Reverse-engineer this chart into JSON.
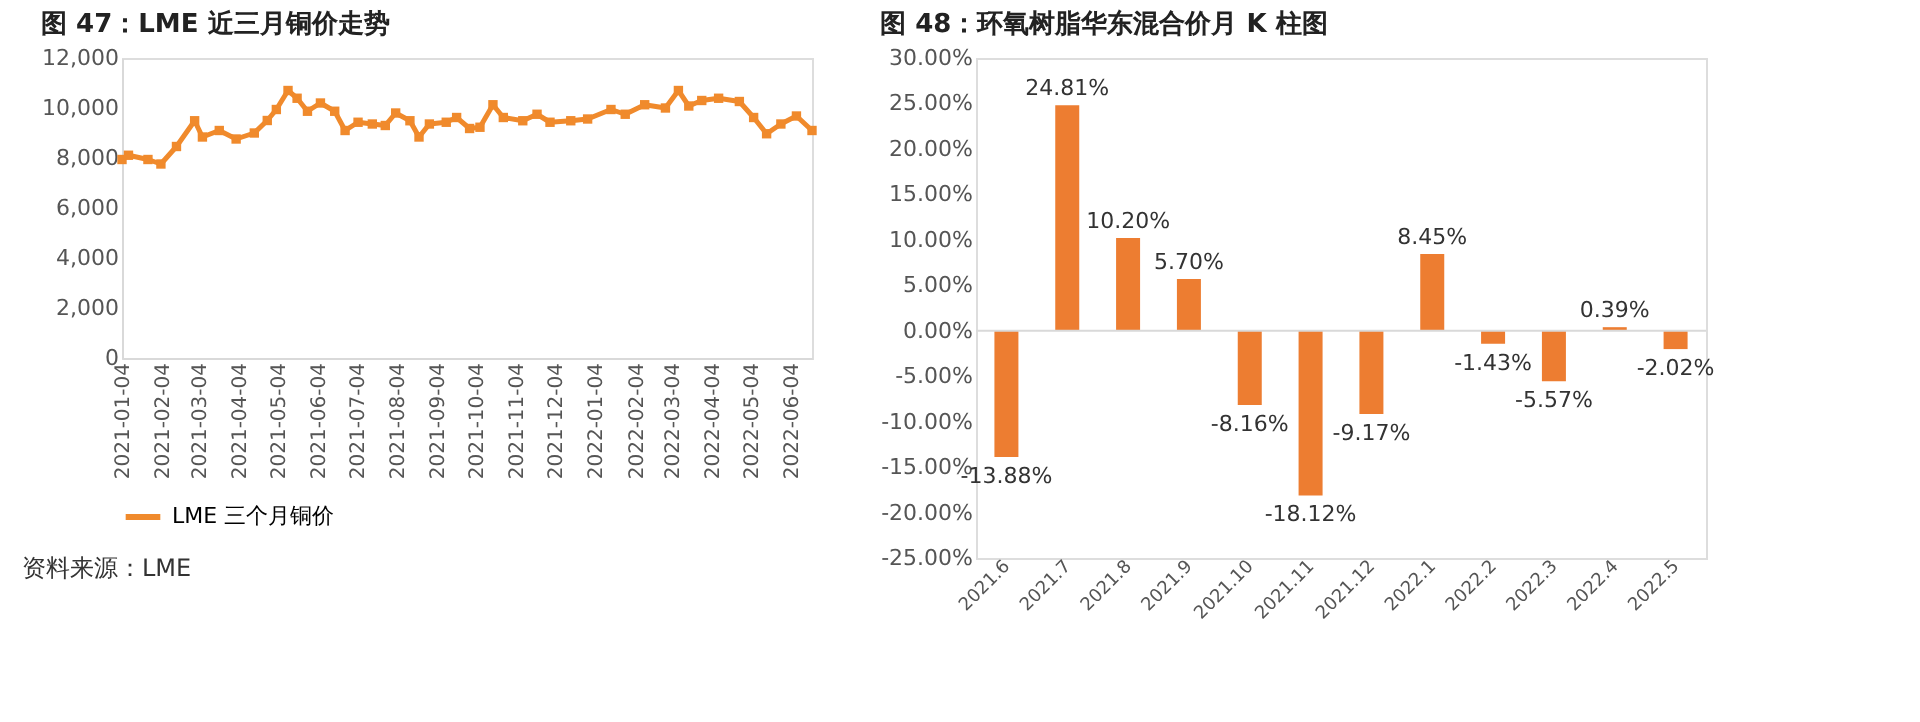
{
  "chart_data": [
    {
      "type": "line",
      "title": "图 47：LME 近三月铜价走势",
      "x": [
        "2021-01-04",
        "2021-01-09",
        "2021-01-24",
        "2021-02-03",
        "2021-02-15",
        "2021-03-01",
        "2021-03-07",
        "2021-03-20",
        "2021-04-02",
        "2021-04-16",
        "2021-04-26",
        "2021-05-03",
        "2021-05-12",
        "2021-05-19",
        "2021-05-27",
        "2021-06-06",
        "2021-06-17",
        "2021-06-25",
        "2021-07-05",
        "2021-07-16",
        "2021-07-26",
        "2021-08-03",
        "2021-08-14",
        "2021-08-21",
        "2021-08-29",
        "2021-09-11",
        "2021-09-19",
        "2021-09-29",
        "2021-10-07",
        "2021-10-17",
        "2021-10-25",
        "2021-11-09",
        "2021-11-20",
        "2021-11-30",
        "2021-12-16",
        "2021-12-29",
        "2022-01-16",
        "2022-01-27",
        "2022-02-11",
        "2022-02-27",
        "2022-03-09",
        "2022-03-17",
        "2022-03-27",
        "2022-04-09",
        "2022-04-25",
        "2022-05-06",
        "2022-05-16",
        "2022-05-27",
        "2022-06-08",
        "2022-06-20"
      ],
      "series": [
        {
          "name": "LME 三个月铜价",
          "color": "#f08a2c",
          "values": [
            7940,
            8110,
            7940,
            7760,
            8460,
            9490,
            8840,
            9100,
            8760,
            9000,
            9500,
            9940,
            10700,
            10390,
            9870,
            10200,
            9870,
            9100,
            9430,
            9360,
            9300,
            9800,
            9490,
            8840,
            9360,
            9430,
            9620,
            9180,
            9230,
            10130,
            9620,
            9490,
            9750,
            9430,
            9490,
            9560,
            9940,
            9750,
            10130,
            10000,
            10700,
            10080,
            10300,
            10390,
            10260,
            9620,
            8970,
            9360,
            9680,
            9100
          ]
        }
      ],
      "xlim": [
        "2021-01-04",
        "2022-06-20"
      ],
      "xticks": [
        "2021-01-04",
        "2021-02-04",
        "2021-03-04",
        "2021-04-04",
        "2021-05-04",
        "2021-06-04",
        "2021-07-04",
        "2021-08-04",
        "2021-09-04",
        "2021-10-04",
        "2021-11-04",
        "2021-12-04",
        "2022-01-04",
        "2022-02-04",
        "2022-03-04",
        "2022-04-04",
        "2022-05-04",
        "2022-06-04"
      ],
      "ylim": [
        0,
        12000
      ],
      "yticks": [
        0,
        {
          "value": 2000,
          "label": "2,000"
        },
        {
          "value": 4000,
          "label": "4,000"
        },
        {
          "value": 6000,
          "label": "6,000"
        },
        {
          "value": 8000,
          "label": "8,000"
        },
        {
          "value": 10000,
          "label": "10,000"
        },
        {
          "value": 12000,
          "label": "12,000"
        }
      ],
      "legend": "bottom",
      "grid": false,
      "marker": "square",
      "line_style": "solid",
      "annotations": [
        "资料来源：LME"
      ]
    },
    {
      "type": "bar",
      "title": "图 48：环氧树脂华东混合价月 K 柱图",
      "categories": [
        "2021.6",
        "2021.7",
        "2021.8",
        "2021.9",
        "2021.10",
        "2021.11",
        "2021.12",
        "2022.1",
        "2022.2",
        "2022.3",
        "2022.4",
        "2022.5"
      ],
      "values": [
        -13.88,
        24.81,
        10.2,
        5.7,
        -8.16,
        -18.12,
        -9.17,
        8.45,
        -1.43,
        -5.57,
        0.39,
        -2.02
      ],
      "value_labels": [
        "-13.88%",
        "24.81%",
        "10.20%",
        "5.70%",
        "-8.16%",
        "-18.12%",
        "-9.17%",
        "8.45%",
        "-1.43%",
        "-5.57%",
        "0.39%",
        "-2.02%"
      ],
      "color": "#ed7d31",
      "ylim": [
        -25,
        30
      ],
      "yticks": [
        {
          "value": -25,
          "label": "-25.00%"
        },
        {
          "value": -20,
          "label": "-20.00%"
        },
        {
          "value": -15,
          "label": "-15.00%"
        },
        {
          "value": -10,
          "label": "-10.00%"
        },
        {
          "value": -5,
          "label": "-5.00%"
        },
        {
          "value": 0,
          "label": "0.00%"
        },
        {
          "value": 5,
          "label": "5.00%"
        },
        {
          "value": 10,
          "label": "10.00%"
        },
        {
          "value": 15,
          "label": "15.00%"
        },
        {
          "value": 20,
          "label": "20.00%"
        },
        {
          "value": 25,
          "label": "25.00%"
        },
        {
          "value": 30,
          "label": "30.00%"
        }
      ],
      "ref_lines": [
        {
          "axis": "y",
          "value": 0
        }
      ],
      "grid": false,
      "legend": false
    }
  ]
}
